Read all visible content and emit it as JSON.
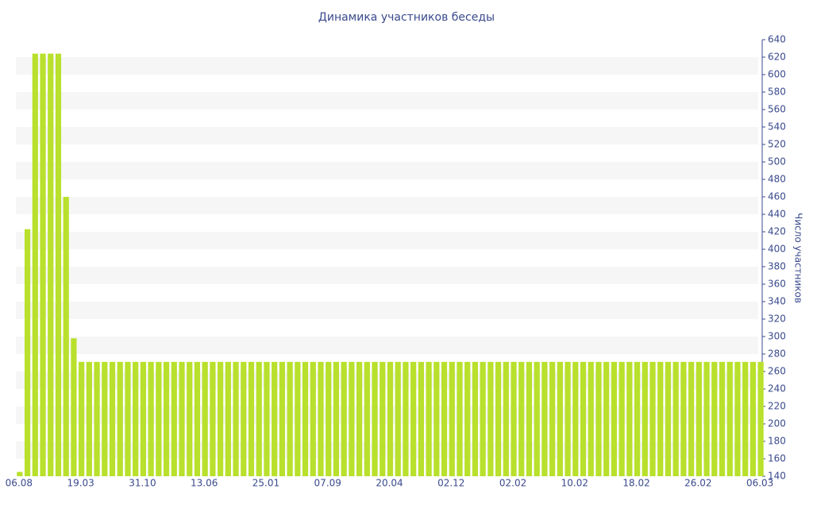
{
  "chart_data": {
    "type": "bar",
    "title": "Динамика участников беседы",
    "y_axis_label": "Число участников",
    "y_axis_side": "right",
    "grid": "alternating",
    "color": "#b8e02c",
    "categories": [
      "06.08",
      null,
      null,
      null,
      null,
      null,
      null,
      null,
      "19.03",
      null,
      null,
      null,
      null,
      null,
      null,
      null,
      "31.10",
      null,
      null,
      null,
      null,
      null,
      null,
      null,
      "13.06",
      null,
      null,
      null,
      null,
      null,
      null,
      null,
      "25.01",
      null,
      null,
      null,
      null,
      null,
      null,
      null,
      "07.09",
      null,
      null,
      null,
      null,
      null,
      null,
      null,
      "20.04",
      null,
      null,
      null,
      null,
      null,
      null,
      null,
      "02.12",
      null,
      null,
      null,
      null,
      null,
      null,
      null,
      "02.02",
      null,
      null,
      null,
      null,
      null,
      null,
      null,
      "10.02",
      null,
      null,
      null,
      null,
      null,
      null,
      null,
      "18.02",
      null,
      null,
      null,
      null,
      null,
      null,
      null,
      "26.02",
      null,
      null,
      null,
      null,
      null,
      null,
      null,
      "06.03"
    ],
    "values": [
      145,
      423,
      624,
      624,
      624,
      624,
      460,
      298,
      271,
      271,
      271,
      271,
      271,
      271,
      271,
      271,
      271,
      271,
      271,
      271,
      271,
      271,
      271,
      271,
      271,
      271,
      271,
      271,
      271,
      271,
      271,
      271,
      271,
      271,
      271,
      271,
      271,
      271,
      271,
      271,
      271,
      271,
      271,
      271,
      271,
      271,
      271,
      271,
      271,
      271,
      271,
      271,
      271,
      271,
      271,
      271,
      271,
      271,
      271,
      271,
      271,
      271,
      271,
      271,
      271,
      271,
      271,
      271,
      271,
      271,
      271,
      271,
      271,
      271,
      271,
      271,
      271,
      271,
      271,
      271,
      271,
      271,
      271,
      271,
      271,
      271,
      271,
      271,
      271,
      271,
      271,
      271,
      271,
      271,
      271,
      271,
      271
    ],
    "ylim": [
      140,
      640
    ],
    "yticks": [
      140,
      160,
      180,
      200,
      220,
      240,
      260,
      280,
      300,
      320,
      340,
      360,
      380,
      400,
      420,
      440,
      460,
      480,
      500,
      520,
      540,
      560,
      580,
      600,
      620,
      640
    ]
  }
}
